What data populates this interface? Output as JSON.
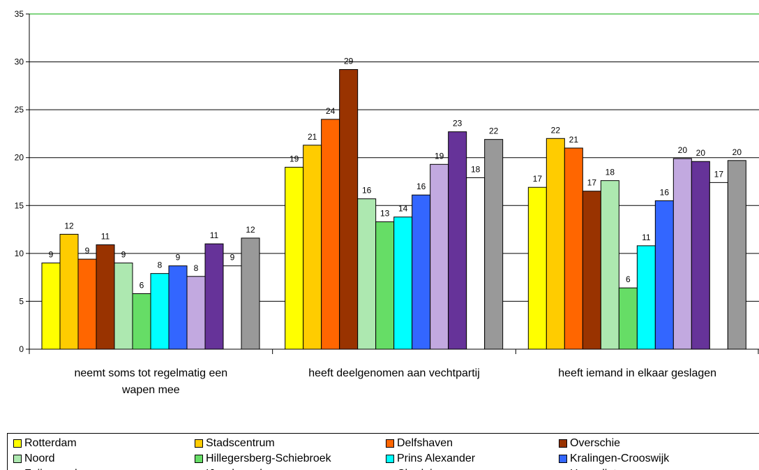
{
  "chart_data": {
    "type": "bar",
    "categories": [
      "neemt soms tot regelmatig een wapen mee",
      "heeft deelgenomen aan vechtpartij",
      "heeft iemand in elkaar geslagen"
    ],
    "category_lines": [
      [
        "neemt soms tot regelmatig een",
        "wapen mee"
      ],
      [
        "heeft deelgenomen aan vechtpartij"
      ],
      [
        "heeft iemand in elkaar geslagen"
      ]
    ],
    "ylim": [
      0,
      35
    ],
    "yticks": [
      "0",
      "5",
      "10",
      "15",
      "20",
      "25",
      "30",
      "35"
    ],
    "grid": true,
    "legend": "bottom",
    "series": [
      {
        "name": "Rotterdam",
        "color": "#ffff00",
        "values": [
          9.0,
          19.0,
          16.9
        ],
        "labels": [
          "9",
          "19",
          "17"
        ]
      },
      {
        "name": "Stadscentrum",
        "color": "#ffcc00",
        "values": [
          12.0,
          21.3,
          22.0
        ],
        "labels": [
          "12",
          "21",
          "22"
        ]
      },
      {
        "name": "Delfshaven",
        "color": "#ff6600",
        "values": [
          9.4,
          24.0,
          21.0
        ],
        "labels": [
          "9",
          "24",
          "21"
        ]
      },
      {
        "name": "Overschie",
        "color": "#993300",
        "values": [
          10.9,
          29.2,
          16.5
        ],
        "labels": [
          "11",
          "29",
          "17"
        ]
      },
      {
        "name": "Noord",
        "color": "#ade8b0",
        "values": [
          9.0,
          15.7,
          17.6
        ],
        "labels": [
          "9",
          "16",
          "18"
        ]
      },
      {
        "name": "Hillegersberg-Schiebroek",
        "color": "#66dd66",
        "values": [
          5.8,
          13.3,
          6.4
        ],
        "labels": [
          "6",
          "13",
          "6"
        ]
      },
      {
        "name": "Prins Alexander",
        "color": "#00ffff",
        "values": [
          7.9,
          13.8,
          10.8
        ],
        "labels": [
          "8",
          "14",
          "11"
        ]
      },
      {
        "name": "Kralingen-Crooswijk",
        "color": "#3366ff",
        "values": [
          8.7,
          16.1,
          15.5
        ],
        "labels": [
          "9",
          "16",
          "16"
        ]
      },
      {
        "name": "Feijenoord",
        "color": "#c2a9e0",
        "values": [
          7.6,
          19.3,
          19.9
        ],
        "labels": [
          "8",
          "19",
          "20"
        ]
      },
      {
        "name": "IJsselmonde",
        "color": "#663399",
        "values": [
          11.0,
          22.7,
          19.6
        ],
        "labels": [
          "11",
          "23",
          "20"
        ]
      },
      {
        "name": "Charlois",
        "color": "#ffffff",
        "values": [
          8.7,
          17.9,
          17.4
        ],
        "labels": [
          "9",
          "18",
          "17"
        ]
      },
      {
        "name": "Hoogvliet",
        "color": "#999999",
        "values": [
          11.6,
          21.9,
          19.7
        ],
        "labels": [
          "12",
          "22",
          "20"
        ]
      }
    ]
  }
}
